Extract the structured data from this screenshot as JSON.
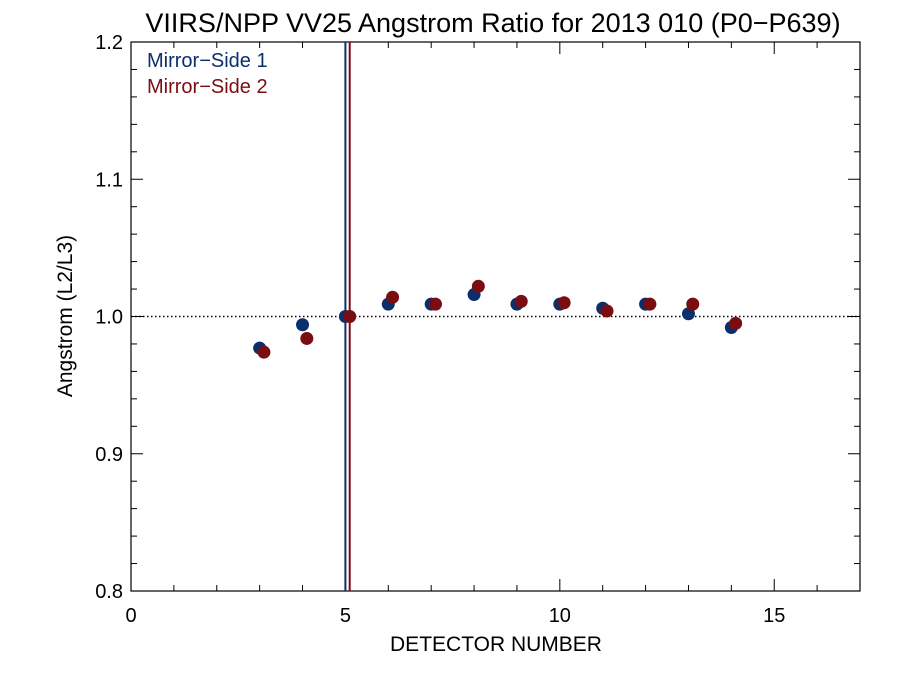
{
  "chart_data": {
    "type": "scatter",
    "title": "VIIRS/NPP VV25 Angstrom Ratio for 2013 010 (P0−P639)",
    "xlabel": "DETECTOR NUMBER",
    "ylabel": "Angstrom (L2/L3)",
    "xlim": [
      0,
      17
    ],
    "ylim": [
      0.8,
      1.2
    ],
    "x_ticks": [
      0,
      5,
      10,
      15
    ],
    "x_tick_labels": [
      "0",
      "5",
      "10",
      "15"
    ],
    "y_ticks": [
      0.8,
      0.9,
      1.0,
      1.1,
      1.2
    ],
    "y_tick_labels": [
      "0.8",
      "0.9",
      "1.0",
      "1.1",
      "1.2"
    ],
    "reference_hline": 1.0,
    "vertical_markers": [
      {
        "x": 5.0,
        "color": "#0b2f6b"
      },
      {
        "x": 5.1,
        "color": "#7a0d12"
      }
    ],
    "legend_position": "top-left",
    "series": [
      {
        "name": "Mirror−Side 1",
        "color": "#0b2f6b",
        "points": [
          {
            "x": 3,
            "y": 0.977
          },
          {
            "x": 4,
            "y": 0.994
          },
          {
            "x": 5,
            "y": 1.0
          },
          {
            "x": 6,
            "y": 1.009
          },
          {
            "x": 7,
            "y": 1.009
          },
          {
            "x": 8,
            "y": 1.016
          },
          {
            "x": 9,
            "y": 1.009
          },
          {
            "x": 10,
            "y": 1.009
          },
          {
            "x": 11,
            "y": 1.006
          },
          {
            "x": 12,
            "y": 1.009
          },
          {
            "x": 13,
            "y": 1.002
          },
          {
            "x": 14,
            "y": 0.992
          }
        ]
      },
      {
        "name": "Mirror−Side 2",
        "color": "#7a0d12",
        "points": [
          {
            "x": 3.1,
            "y": 0.974
          },
          {
            "x": 4.1,
            "y": 0.984
          },
          {
            "x": 5.1,
            "y": 1.0
          },
          {
            "x": 6.1,
            "y": 1.014
          },
          {
            "x": 7.1,
            "y": 1.009
          },
          {
            "x": 8.1,
            "y": 1.022
          },
          {
            "x": 9.1,
            "y": 1.011
          },
          {
            "x": 10.1,
            "y": 1.01
          },
          {
            "x": 11.1,
            "y": 1.004
          },
          {
            "x": 12.1,
            "y": 1.009
          },
          {
            "x": 13.1,
            "y": 1.009
          },
          {
            "x": 14.1,
            "y": 0.995
          }
        ]
      }
    ]
  }
}
